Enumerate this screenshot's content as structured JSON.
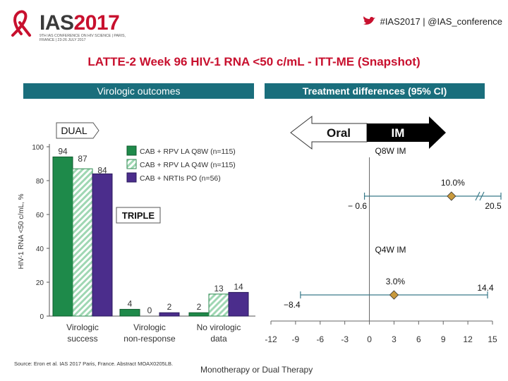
{
  "header": {
    "logo_text": "IAS",
    "logo_year": "2017",
    "logo_sub": "9TH IAS CONFERENCE ON HIV SCIENCE | PARIS, FRANCE | 23-26 JULY 2017",
    "twitter": "#IAS2017 | @IAS_conference"
  },
  "title": "LATTE-2 Week 96 HIV-1 RNA <50 c/mL - ITT-ME (Snapshot)",
  "panels": {
    "left_header": "Virologic outcomes",
    "right_header": "Treatment differences (95% CI)"
  },
  "colors": {
    "accent": "#c8102e",
    "panel_header": "#1a6e7c",
    "bar1": "#1e8a4a",
    "bar2": "#9fd7b3",
    "bar3": "#4b2d8c",
    "point": "#c99a3d"
  },
  "chart_data": [
    {
      "type": "bar",
      "title": "Virologic outcomes",
      "ylabel": "HIV-1 RNA <50 c/mL, %",
      "ylim": [
        0,
        100
      ],
      "yticks": [
        0,
        20,
        40,
        60,
        80,
        100
      ],
      "categories": [
        "Virologic success",
        "Virologic non-response",
        "No virologic data"
      ],
      "series": [
        {
          "name": "CAB + RPV LA Q8W (n=115)",
          "values": [
            94,
            4,
            2
          ]
        },
        {
          "name": "CAB + RPV LA Q4W (n=115)",
          "values": [
            87,
            0,
            13
          ]
        },
        {
          "name": "CAB + NRTIs PO  (n=56)",
          "values": [
            84,
            2,
            14
          ]
        }
      ],
      "annotations": [
        "DUAL",
        "TRIPLE"
      ]
    },
    {
      "type": "forest",
      "title": "Treatment differences (95% CI)",
      "xlabel": "Monotherapy or Dual Therapy",
      "xlim": [
        -12,
        15
      ],
      "xticks": [
        -12,
        -9,
        -6,
        -3,
        0,
        3,
        6,
        9,
        12,
        15
      ],
      "arrow_left": "Oral",
      "arrow_right": "IM",
      "rows": [
        {
          "label": "Q8W IM",
          "estimate": 10.0,
          "estimate_label": "10.0%",
          "lower": -0.6,
          "lower_label": "− 0.6",
          "upper": 20.5,
          "upper_label": "20.5"
        },
        {
          "label": "Q4W IM",
          "estimate": 3.0,
          "estimate_label": "3.0%",
          "lower": -8.4,
          "lower_label": "−8.4",
          "upper": 14.4,
          "upper_label": "14.4"
        }
      ]
    }
  ],
  "source": "Source: Eron et al. IAS 2017 Paris, France. Abstract MOAX0205LB."
}
